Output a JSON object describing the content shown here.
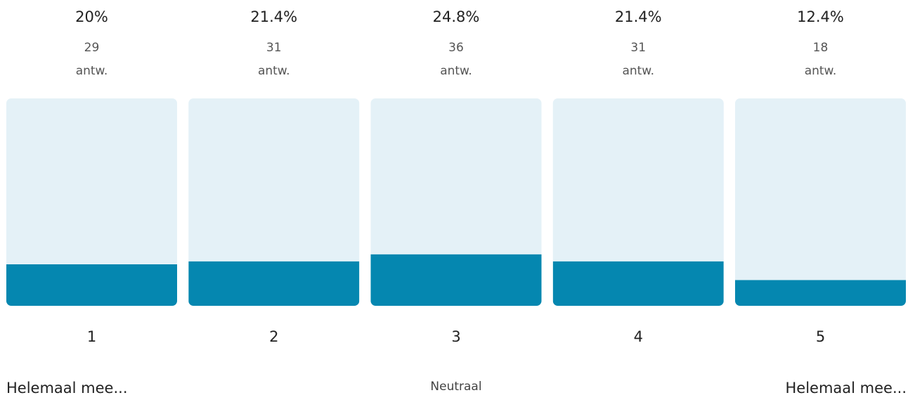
{
  "chart_data": {
    "type": "bar",
    "categories": [
      "1",
      "2",
      "3",
      "4",
      "5"
    ],
    "values": [
      20,
      21.4,
      24.8,
      21.4,
      12.4
    ],
    "value_labels": [
      "20%",
      "21.4%",
      "24.8%",
      "21.4%",
      "12.4%"
    ],
    "counts": [
      29,
      31,
      36,
      31,
      18
    ],
    "count_unit": "antw.",
    "ylim": [
      0,
      100
    ],
    "color": "#0587b0",
    "track_color": "#e4f1f7",
    "scale_labels": [
      "Helemaal mee...",
      "Neutraal",
      "Helemaal mee..."
    ]
  }
}
